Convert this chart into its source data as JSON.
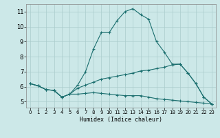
{
  "title": "",
  "xlabel": "Humidex (Indice chaleur)",
  "bg_color": "#cce8e8",
  "grid_color": "#aacccc",
  "line_color": "#1a6e6e",
  "xlim": [
    -0.5,
    23.5
  ],
  "ylim": [
    4.6,
    11.5
  ],
  "xticks": [
    0,
    1,
    2,
    3,
    4,
    5,
    6,
    7,
    8,
    9,
    10,
    11,
    12,
    13,
    14,
    15,
    16,
    17,
    18,
    19,
    20,
    21,
    22,
    23
  ],
  "yticks": [
    5,
    6,
    7,
    8,
    9,
    10,
    11
  ],
  "lines": [
    {
      "x": [
        0,
        1,
        2,
        3,
        4,
        5,
        6,
        7,
        8,
        9,
        10,
        11,
        12,
        13,
        14,
        15,
        16,
        17,
        18,
        19,
        20,
        21,
        22,
        23
      ],
      "y": [
        6.2,
        6.05,
        5.8,
        5.75,
        5.3,
        5.5,
        6.1,
        7.0,
        8.5,
        9.6,
        9.6,
        10.4,
        11.0,
        11.2,
        10.8,
        10.5,
        9.0,
        8.3,
        7.5,
        7.5,
        6.9,
        6.2,
        5.3,
        4.85
      ]
    },
    {
      "x": [
        0,
        1,
        2,
        3,
        4,
        5,
        6,
        7,
        8,
        9,
        10,
        11,
        12,
        13,
        14,
        15,
        16,
        17,
        18,
        19,
        20,
        21,
        22,
        23
      ],
      "y": [
        6.2,
        6.05,
        5.8,
        5.75,
        5.3,
        5.5,
        5.9,
        6.1,
        6.3,
        6.5,
        6.6,
        6.7,
        6.8,
        6.9,
        7.05,
        7.1,
        7.2,
        7.3,
        7.45,
        7.5,
        6.9,
        6.2,
        5.3,
        4.85
      ]
    },
    {
      "x": [
        0,
        1,
        2,
        3,
        4,
        5,
        6,
        7,
        8,
        9,
        10,
        11,
        12,
        13,
        14,
        15,
        16,
        17,
        18,
        19,
        20,
        21,
        22,
        23
      ],
      "y": [
        6.2,
        6.05,
        5.8,
        5.75,
        5.3,
        5.5,
        5.5,
        5.55,
        5.6,
        5.55,
        5.5,
        5.45,
        5.4,
        5.4,
        5.4,
        5.3,
        5.2,
        5.15,
        5.1,
        5.05,
        5.0,
        4.95,
        4.9,
        4.85
      ]
    }
  ]
}
